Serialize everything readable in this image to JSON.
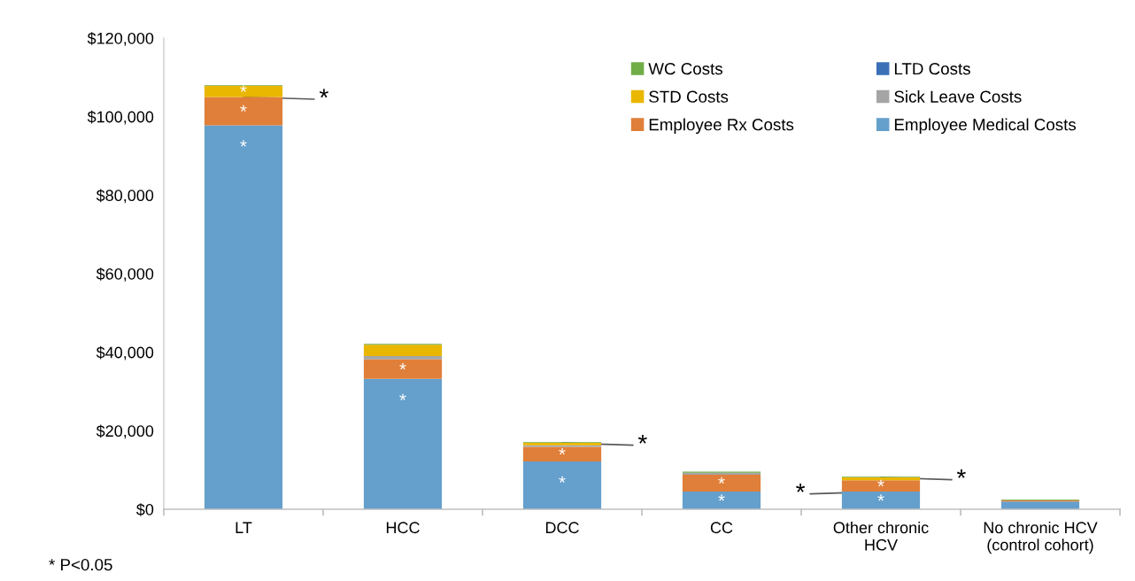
{
  "chart_data": {
    "type": "bar",
    "stacked": true,
    "categories": [
      "LT",
      "HCC",
      "DCC",
      "CC",
      "Other chronic\nHCV",
      "No chronic HCV\n(control cohort)"
    ],
    "series": [
      {
        "name": "Employee Medical Costs",
        "color": "#659fcc",
        "values": [
          97800,
          33200,
          12200,
          4500,
          4500,
          2000
        ],
        "value_labels": [
          "*",
          "*",
          "*",
          "*",
          "*",
          null
        ]
      },
      {
        "name": "Employee Rx Costs",
        "color": "#e07f39",
        "values": [
          7200,
          5000,
          3700,
          4300,
          2900,
          300
        ],
        "value_labels": [
          "*",
          "*",
          "*",
          "*",
          "*",
          null
        ]
      },
      {
        "name": "Sick Leave Costs",
        "color": "#a5a5a5",
        "values": [
          0,
          800,
          400,
          500,
          0,
          0
        ]
      },
      {
        "name": "STD Costs",
        "color": "#eab700",
        "values": [
          2800,
          2900,
          600,
          0,
          700,
          0
        ],
        "value_labels": [
          "*",
          null,
          null,
          null,
          null,
          null
        ]
      },
      {
        "name": "LTD Costs",
        "color": "#3b70b7",
        "values": [
          0,
          0,
          0,
          0,
          0,
          0
        ]
      },
      {
        "name": "WC Costs",
        "color": "#70ad47",
        "values": [
          200,
          200,
          200,
          300,
          200,
          200
        ]
      }
    ],
    "ylim": [
      0,
      120000
    ],
    "yticks": [
      {
        "value": 0,
        "label": "$0"
      },
      {
        "value": 20000,
        "label": "$20,000"
      },
      {
        "value": 40000,
        "label": "$40,000"
      },
      {
        "value": 60000,
        "label": "$60,000"
      },
      {
        "value": 80000,
        "label": "$80,000"
      },
      {
        "value": 100000,
        "label": "$100,000"
      },
      {
        "value": 120000,
        "label": "$120,000"
      }
    ],
    "grid": false,
    "legend": "top right",
    "annotations": [
      {
        "text": "*",
        "x": "LT",
        "y": 105000
      },
      {
        "text": "*",
        "x": "DCC",
        "y": 16900
      },
      {
        "text": "*",
        "x": "Other chronic\nHCV",
        "y": 8100
      },
      {
        "text": "*",
        "x": "Other chronic\nHCV",
        "y": 4500
      },
      "* P<0.05"
    ]
  }
}
